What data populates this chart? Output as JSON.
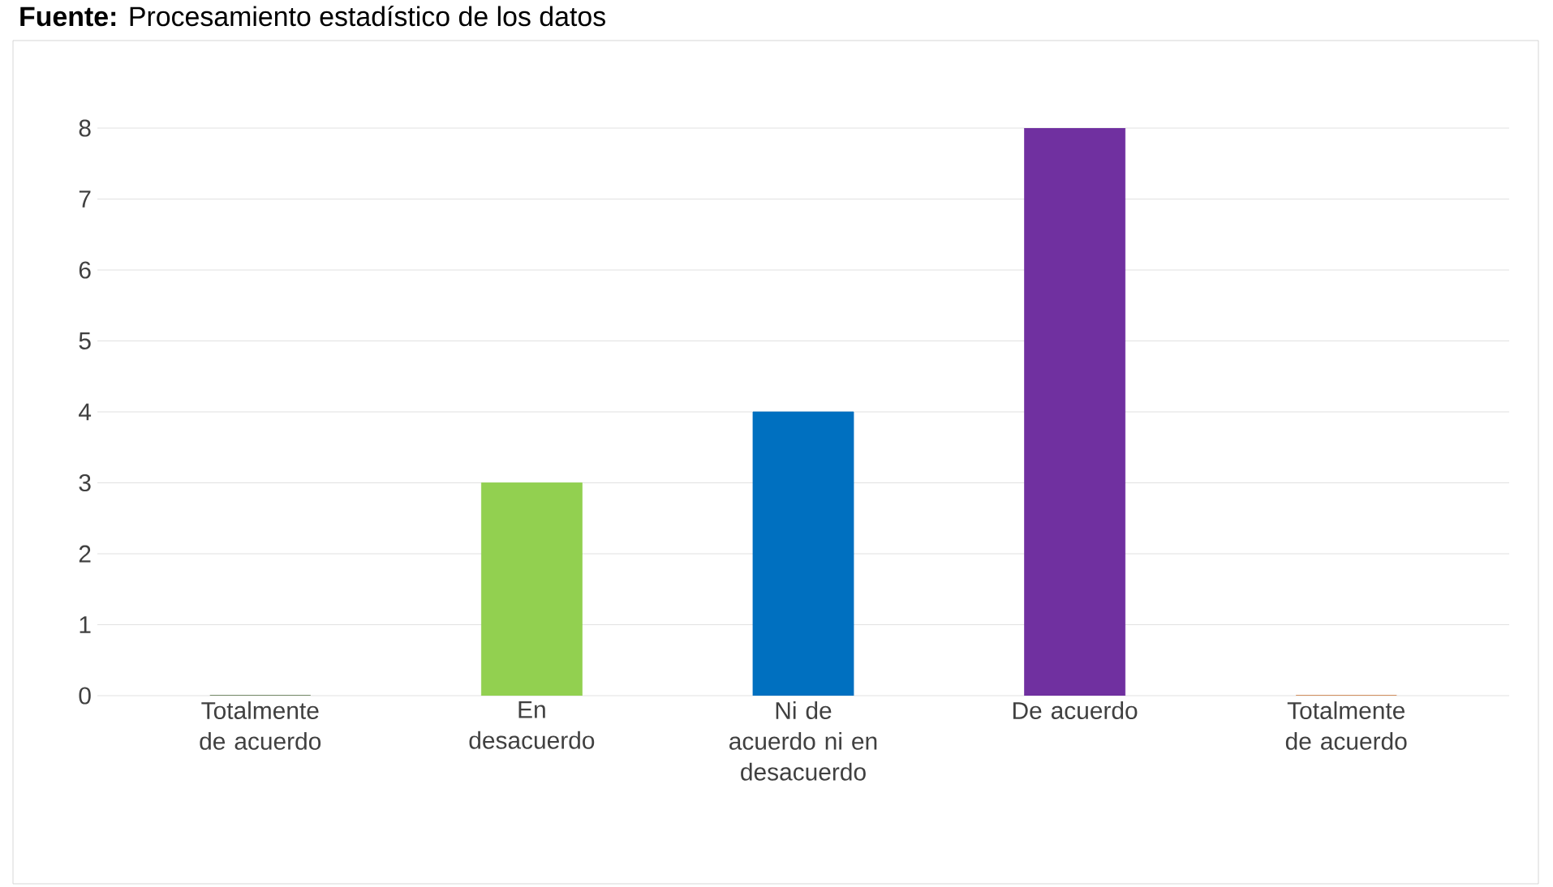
{
  "chart_data": {
    "type": "bar",
    "annotations": [
      "**Fuente:** Procesamiento estadístico de los datos"
    ],
    "categories": [
      "Totalmente de acuerdo",
      "En desacuerdo",
      "Ni de acuerdo ni en desacuerdo",
      "De acuerdo",
      "Totalmente de acuerdo"
    ],
    "values": [
      0,
      3,
      4,
      8,
      0
    ],
    "colors": [
      "#375623",
      "#92d050",
      "#0070c0",
      "#7030a0",
      "#c55a11"
    ],
    "ylim": [
      0,
      8
    ],
    "yticks": [
      0,
      1,
      2,
      3,
      4,
      5,
      6,
      7,
      8
    ],
    "grid": "y"
  }
}
